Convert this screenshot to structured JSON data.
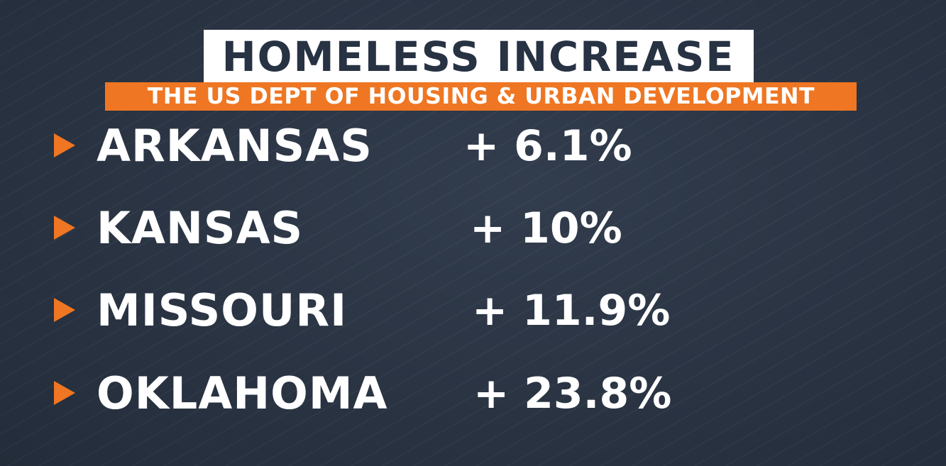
{
  "header": {
    "title": "HOMELESS INCREASE",
    "subtitle": "THE US DEPT OF HOUSING & URBAN DEVELOPMENT"
  },
  "rows": [
    {
      "state": "ARKANSAS",
      "change": "+ 6.1%",
      "bullet_icon": "triangle-right-icon"
    },
    {
      "state": "KANSAS",
      "change": "+ 10%",
      "bullet_icon": "triangle-right-icon"
    },
    {
      "state": "MISSOURI",
      "change": "+ 11.9%",
      "bullet_icon": "triangle-right-icon"
    },
    {
      "state": "OKLAHOMA",
      "change": "+ 23.8%",
      "bullet_icon": "triangle-right-icon"
    }
  ],
  "colors": {
    "background": "#2b3647",
    "accent": "#ef7622",
    "title_box": "#ffffff",
    "title_text": "#273243",
    "body_text": "#ffffff"
  }
}
